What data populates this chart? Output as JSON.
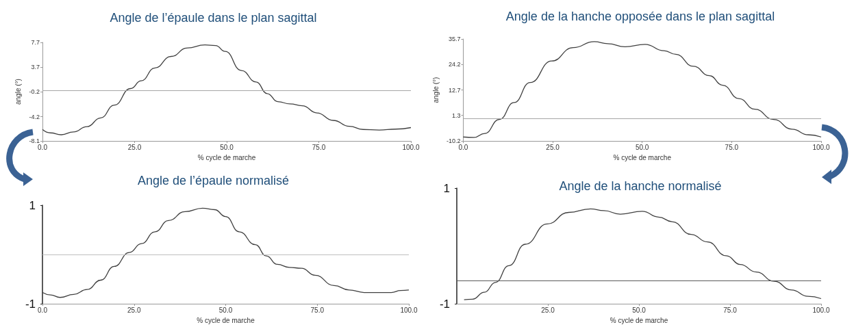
{
  "chart_data": [
    {
      "type": "line",
      "title": "Angle de l’épaule dans le plan sagittal",
      "xlabel": "% cycle de marche",
      "ylabel": "angle (°)",
      "xlim": [
        0,
        100
      ],
      "xticks": [
        {
          "value": 0,
          "label": "0.0"
        },
        {
          "value": 25,
          "label": "25.0"
        },
        {
          "value": 50,
          "label": "50.0"
        },
        {
          "value": 75,
          "label": "75.0"
        },
        {
          "value": 100,
          "label": "100.0"
        }
      ],
      "ylim": [
        -8.1,
        7.7
      ],
      "yticks": [
        -8.1,
        -4.2,
        -0.2,
        3.7,
        7.7
      ],
      "grid": false,
      "marker": "none",
      "line_style": "solid",
      "ref_lines": [
        {
          "axis": "y",
          "value": 0,
          "color": "#a6a6a6"
        }
      ],
      "series": [
        {
          "color": "#404040",
          "x": [
            0,
            2.2,
            5.1,
            8.4,
            12.1,
            15.8,
            19.5,
            23.9,
            26.8,
            30.5,
            34.9,
            39.3,
            44.1,
            47,
            49.6,
            54,
            58,
            61,
            63.9,
            67.2,
            70.5,
            74.5,
            78.9,
            83.3,
            87,
            91.4,
            95.8,
            100
          ],
          "values": [
            -6.25,
            -6.8,
            -7.1,
            -6.65,
            -5.8,
            -4.4,
            -2.35,
            0.3,
            1.55,
            3.6,
            5.45,
            6.8,
            7.3,
            7.2,
            6.25,
            3.2,
            1.35,
            -0.5,
            -1.8,
            -2.15,
            -2.45,
            -3.6,
            -4.8,
            -5.75,
            -6.25,
            -6.35,
            -6.2,
            -5.95
          ]
        }
      ]
    },
    {
      "type": "line",
      "title": "Angle de la hanche opposée dans le plan sagittal",
      "xlabel": "% cycle de marche",
      "ylabel": "angle (°)",
      "xlim": [
        0,
        100
      ],
      "xticks": [
        {
          "value": 0,
          "label": "0.0"
        },
        {
          "value": 25,
          "label": "25.0"
        },
        {
          "value": 50,
          "label": "50.0"
        },
        {
          "value": 75,
          "label": "75.0"
        },
        {
          "value": 100,
          "label": "100.0"
        }
      ],
      "ylim": [
        -10.2,
        35.7
      ],
      "yticks": [
        -10.2,
        1.3,
        12.7,
        24.2,
        35.7
      ],
      "grid": false,
      "marker": "none",
      "line_style": "solid",
      "ref_lines": [
        {
          "axis": "y",
          "value": 0,
          "color": "#a6a6a6"
        }
      ],
      "series": [
        {
          "color": "#404040",
          "x": [
            0,
            3,
            6,
            10.1,
            14.2,
            18.7,
            24.7,
            30.7,
            36.6,
            40.4,
            45.2,
            50.8,
            56.1,
            59.4,
            64.3,
            68.8,
            72.5,
            77,
            81.5,
            86.7,
            91.9,
            96.4,
            100
          ],
          "values": [
            -8.4,
            -8.6,
            -6.8,
            -0.5,
            7.1,
            16.1,
            25.8,
            31.8,
            34.5,
            33.6,
            32.2,
            33.3,
            30.4,
            28.8,
            23.4,
            19.2,
            14.9,
            8.9,
            4.1,
            -0.5,
            -4.9,
            -7.4,
            -8.4
          ]
        }
      ]
    },
    {
      "type": "line",
      "title": "Angle de l’épaule normalisé",
      "xlabel": "% cycle de marche",
      "xlim": [
        0,
        100
      ],
      "xticks": [
        {
          "value": 0,
          "label": "0.0"
        },
        {
          "value": 25,
          "label": "25.0"
        },
        {
          "value": 50,
          "label": "50.0"
        },
        {
          "value": 75,
          "label": "75.0"
        },
        {
          "value": 100,
          "label": "100.0"
        }
      ],
      "ylim": [
        -1,
        1
      ],
      "yticks": [
        -1,
        1
      ],
      "grid": false,
      "marker": "none",
      "line_style": "solid",
      "ref_lines": [
        {
          "axis": "y",
          "value": 0,
          "color": "#bfbfbf"
        }
      ],
      "series": [
        {
          "color": "#404040",
          "x": [
            0,
            2.2,
            4.8,
            8.5,
            12.2,
            15.9,
            19.6,
            23.7,
            27,
            30.7,
            34.4,
            38.9,
            43.7,
            47,
            50,
            53.7,
            58.1,
            61.1,
            64.1,
            67.4,
            70.7,
            74.4,
            79.6,
            83.7,
            87.8,
            95.2,
            97.8,
            100
          ],
          "values": [
            -0.77,
            -0.82,
            -0.87,
            -0.81,
            -0.71,
            -0.52,
            -0.24,
            0.04,
            0.22,
            0.46,
            0.69,
            0.87,
            0.94,
            0.91,
            0.77,
            0.46,
            0.2,
            -0.03,
            -0.2,
            -0.26,
            -0.28,
            -0.42,
            -0.63,
            -0.72,
            -0.77,
            -0.77,
            -0.73,
            -0.72
          ]
        }
      ]
    },
    {
      "type": "line",
      "title": "Angle de la hanche normalisé",
      "xlabel": "% cycle de marche",
      "xlim": [
        0,
        100
      ],
      "xticks": [
        {
          "value": 25,
          "label": "25.0"
        },
        {
          "value": 50,
          "label": "50.0"
        },
        {
          "value": 75,
          "label": "75.0"
        },
        {
          "value": 100,
          "label": "100.0"
        }
      ],
      "ylim": [
        -1,
        1
      ],
      "yticks": [
        -1,
        1
      ],
      "grid": false,
      "marker": "none",
      "line_style": "solid",
      "ref_lines": [
        {
          "axis": "y",
          "value": -0.6,
          "color": "#595959"
        }
      ],
      "series": [
        {
          "color": "#404040",
          "x": [
            2,
            4.3,
            7.6,
            10.6,
            14.3,
            18.8,
            24.8,
            30.7,
            36.7,
            40.4,
            44.9,
            50.9,
            55.4,
            59.1,
            64.3,
            68.8,
            74,
            77.8,
            82.2,
            87.1,
            91.9,
            96.4,
            100
          ],
          "values": [
            -0.93,
            -0.92,
            -0.8,
            -0.63,
            -0.34,
            0.03,
            0.38,
            0.58,
            0.64,
            0.61,
            0.55,
            0.6,
            0.5,
            0.42,
            0.2,
            0.07,
            -0.17,
            -0.32,
            -0.45,
            -0.61,
            -0.76,
            -0.87,
            -0.91
          ]
        }
      ]
    }
  ]
}
